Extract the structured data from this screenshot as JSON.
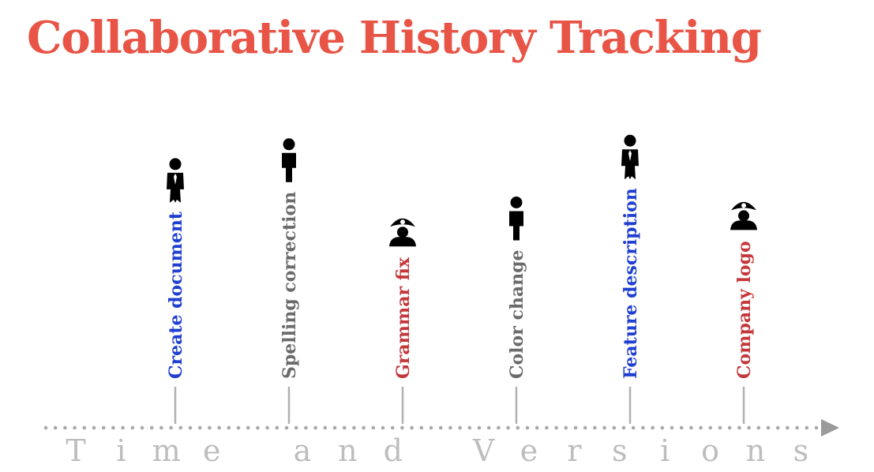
{
  "title": "Collaborative History Tracking",
  "colors": {
    "title": "#e85446",
    "blue_user": "#1f3fd0",
    "gray_user": "#6b6b6b",
    "red_user": "#c4373a",
    "tick": "#b0b0b0",
    "axis_dots": "#a8a8a8",
    "axis_arrow": "#9a9a9a",
    "axis_label": "#bdbdbd",
    "icon": "#000000"
  },
  "axis": {
    "label_letters": [
      "T",
      "i",
      "m",
      "e",
      "",
      "a",
      "n",
      "d",
      "",
      "V",
      "e",
      "r",
      "s",
      "i",
      "o",
      "n",
      "s"
    ]
  },
  "events": [
    {
      "label": "Create document",
      "color": "blue_user",
      "icon": "person-tie-icon"
    },
    {
      "label": "Spelling correction",
      "color": "gray_user",
      "icon": "person-icon"
    },
    {
      "label": "Grammar fix",
      "color": "red_user",
      "icon": "pirate-icon"
    },
    {
      "label": "Color change",
      "color": "gray_user",
      "icon": "person-icon"
    },
    {
      "label": "Feature description",
      "color": "blue_user",
      "icon": "person-tie-icon"
    },
    {
      "label": "Company logo",
      "color": "red_user",
      "icon": "pirate-icon"
    }
  ]
}
